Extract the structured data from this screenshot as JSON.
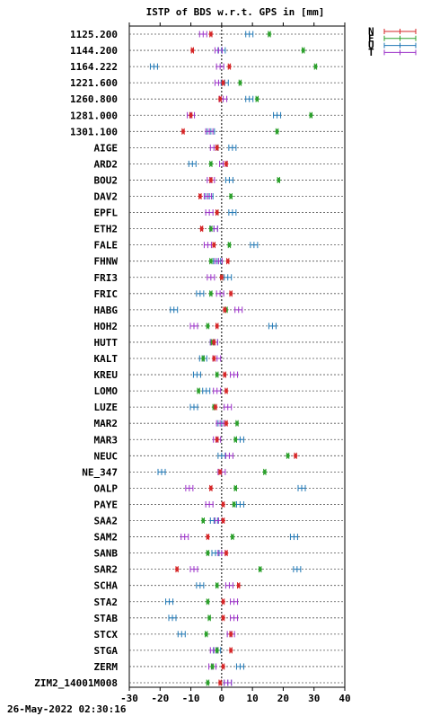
{
  "chart_data": {
    "type": "scatter",
    "title": "ISTP of BDS w.r.t. GPS in [mm]",
    "footer": "26-May-2022 02:30:16",
    "xlim": [
      -30,
      40
    ],
    "xticks": [
      -30,
      -20,
      -10,
      0,
      10,
      20,
      30,
      40
    ],
    "grid": true,
    "legend_position": "top-right outside",
    "legend": [
      {
        "key": "N",
        "color": "#d62728"
      },
      {
        "key": "E",
        "color": "#2ca02c"
      },
      {
        "key": "U",
        "color": "#1f77b4"
      },
      {
        "key": "T",
        "color": "#9b30c8"
      }
    ],
    "stations": [
      "1125.200",
      "1144.200",
      "1164.222",
      "1221.600",
      "1260.800",
      "1281.000",
      "1301.100",
      "AIGE",
      "ARD2",
      "BOU2",
      "DAV2",
      "EPFL",
      "ETH2",
      "FALE",
      "FHNW",
      "FRI3",
      "FRIC",
      "HABG",
      "HOH2",
      "HUTT",
      "KALT",
      "KREU",
      "LOMO",
      "LUZE",
      "MAR2",
      "MAR3",
      "NEUC",
      "NE_347",
      "OALP",
      "PAYE",
      "SAA2",
      "SAM2",
      "SANB",
      "SAR2",
      "SCHA",
      "STA2",
      "STAB",
      "STCX",
      "STGA",
      "ZERM",
      "ZIM2_14001M008"
    ],
    "series": [
      {
        "name": "N",
        "values": [
          -3.5,
          -9.5,
          2.5,
          0.5,
          -0.5,
          -10,
          -12.5,
          -1.5,
          1.5,
          -3.5,
          -7,
          -1.5,
          -6.5,
          -2.5,
          2,
          0,
          3,
          1,
          -1.5,
          -2.5,
          -2.5,
          1,
          1.5,
          -2,
          1.5,
          -1.5,
          24,
          -0.5,
          -3.5,
          0.5,
          0.5,
          -4.5,
          1.5,
          -14.5,
          5.5,
          0.5,
          0.5,
          3,
          3,
          0.5,
          -0.5
        ]
      },
      {
        "name": "E",
        "values": [
          15.5,
          26.5,
          30.5,
          6,
          11.5,
          29,
          18,
          -1.5,
          -3.5,
          18.5,
          3,
          -1.5,
          -3.5,
          2.5,
          -3.5,
          0,
          -3.5,
          1.5,
          -4.5,
          -3,
          -6,
          -1.5,
          -7.5,
          -2.5,
          5,
          4.5,
          21.5,
          14,
          4.5,
          4,
          -6,
          3.5,
          -4.5,
          12.5,
          -1.5,
          -4.5,
          -4,
          -5,
          -1.5,
          -3,
          -4.5
        ]
      },
      {
        "name": "U",
        "values": [
          9,
          0,
          -22,
          1,
          9,
          18,
          -3.5,
          3.5,
          -9.5,
          2.5,
          -4,
          3.5,
          -2.5,
          10.5,
          -1.5,
          2,
          -7,
          -15.5,
          16.5,
          -2.5,
          -6,
          -8,
          -5,
          -9,
          0,
          6,
          0,
          -19.5,
          26,
          6,
          -2.5,
          23.5,
          -2,
          24.5,
          -7,
          -17,
          -16,
          -13,
          -1.5,
          6,
          2
        ]
      },
      {
        "name": "T",
        "values": [
          -6,
          -1,
          -0.5,
          -1,
          0.5,
          -10,
          -4,
          -2.5,
          0.5,
          -3.5,
          -4.5,
          -4,
          -2.5,
          -4.5,
          -1,
          -3.5,
          -0.5,
          5.5,
          -9,
          -2.5,
          -1.5,
          4,
          -1.5,
          2,
          -0.5,
          -1.5,
          2.5,
          0,
          -10.5,
          -4,
          -1,
          -12,
          0,
          -9,
          2.5,
          4,
          4,
          3,
          -2.5,
          -3,
          2
        ]
      }
    ]
  }
}
